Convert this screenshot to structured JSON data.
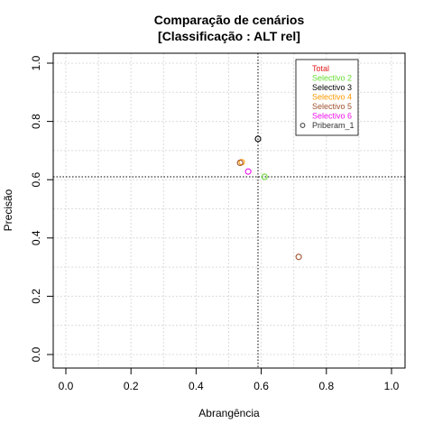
{
  "chart_data": {
    "type": "scatter",
    "title": [
      "Comparação de cenários",
      "[Classificação : ALT rel]"
    ],
    "xlabel": "Abrangência",
    "ylabel": "Precisão",
    "xlim": [
      0,
      1
    ],
    "ylim": [
      0,
      1
    ],
    "x_ticks": [
      0.0,
      0.2,
      0.4,
      0.6,
      0.8,
      1.0
    ],
    "y_ticks": [
      0.0,
      0.2,
      0.4,
      0.6,
      0.8,
      1.0
    ],
    "x_tick_labels": [
      "0.0",
      "0.2",
      "0.4",
      "0.6",
      "0.8",
      "1.0"
    ],
    "y_tick_labels": [
      "0.0",
      "0.2",
      "0.4",
      "0.6",
      "0.8",
      "1.0"
    ],
    "grid": true,
    "reference_lines": {
      "x": 0.59,
      "y": 0.61
    },
    "legend_position": "top-right",
    "series": [
      {
        "name": "Total",
        "color": "#e41a1c",
        "marker": "none",
        "points": []
      },
      {
        "name": "Selectivo 2",
        "color": "#66dd33",
        "marker": "none",
        "points": [
          [
            0.61,
            0.61
          ]
        ]
      },
      {
        "name": "Selectivo 3",
        "color": "#000000",
        "marker": "none",
        "points": [
          [
            0.59,
            0.74
          ]
        ]
      },
      {
        "name": "Selectivo 4",
        "color": "#ff9900",
        "marker": "none",
        "points": [
          [
            0.54,
            0.66
          ]
        ]
      },
      {
        "name": "Selectivo 5",
        "color": "#a0522d",
        "marker": "none",
        "points": [
          [
            0.535,
            0.658
          ],
          [
            0.715,
            0.335
          ]
        ]
      },
      {
        "name": "Selectivo 6",
        "color": "#ee11ee",
        "marker": "none",
        "points": [
          [
            0.56,
            0.628
          ]
        ]
      },
      {
        "name": "Priberam_1",
        "color": "#333333",
        "marker": "circle",
        "points": []
      }
    ]
  }
}
